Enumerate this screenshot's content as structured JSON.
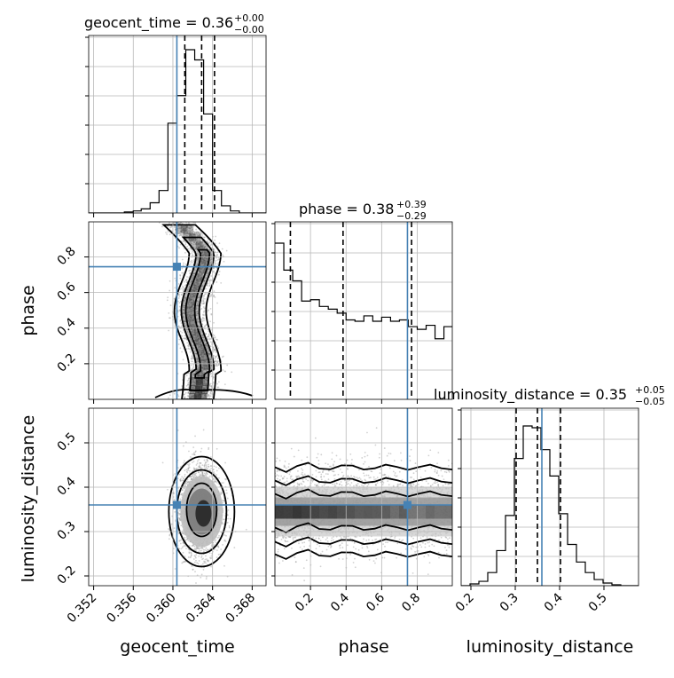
{
  "chart_data": {
    "type": "corner",
    "parameters": [
      "geocent_time",
      "phase",
      "luminosity_distance"
    ],
    "titles": [
      {
        "param": "geocent_time",
        "label": "geocent_time = 0.36",
        "up": "+0.00",
        "down": "−0.00"
      },
      {
        "param": "phase",
        "label": "phase = 0.38",
        "up": "+0.39",
        "down": "−0.29"
      },
      {
        "param": "luminosity_distance",
        "label": "luminosity_distance = 0.35",
        "up": "+0.05",
        "down": "−0.05"
      }
    ],
    "axis_labels": {
      "x": [
        "geocent_time",
        "phase",
        "luminosity_distance"
      ],
      "y": [
        "phase",
        "luminosity_distance"
      ]
    },
    "ranges": {
      "geocent_time": [
        0.3515,
        0.3694
      ],
      "phase": [
        0.0,
        0.997
      ],
      "luminosity_distance": [
        0.178,
        0.578
      ]
    },
    "ticks": {
      "geocent_time": [
        0.352,
        0.356,
        0.36,
        0.364,
        0.368
      ],
      "geocent_time_labels": [
        "0.352",
        "0.356",
        "0.360",
        "0.364",
        "0.368"
      ],
      "phase": [
        0.2,
        0.4,
        0.6,
        0.8
      ],
      "phase_labels": [
        "0.2",
        "0.4",
        "0.6",
        "0.8"
      ],
      "luminosity_distance": [
        0.2,
        0.3,
        0.4,
        0.5
      ],
      "luminosity_distance_labels": [
        "0.2",
        "0.3",
        "0.4",
        "0.5"
      ]
    },
    "truth": {
      "geocent_time": 0.3604,
      "phase": 0.745,
      "luminosity_distance": 0.36
    },
    "quantiles": {
      "geocent_time": [
        0.3612,
        0.3629,
        0.3642
      ],
      "phase": [
        0.087,
        0.383,
        0.768
      ],
      "luminosity_distance": [
        0.302,
        0.35,
        0.402
      ]
    },
    "hist_geocent_time": {
      "edges": [
        0.3515,
        0.3524,
        0.3533,
        0.3542,
        0.3551,
        0.356,
        0.3568,
        0.3577,
        0.3586,
        0.3595,
        0.3604,
        0.3613,
        0.3622,
        0.3631,
        0.364,
        0.3649,
        0.3658,
        0.3667,
        0.3676,
        0.3685,
        0.3694
      ],
      "counts": [
        0,
        0,
        0,
        0,
        1,
        2,
        4,
        10,
        22,
        88,
        115,
        160,
        150,
        97,
        22,
        7,
        2,
        0,
        0,
        0
      ]
    },
    "hist_phase": {
      "edges": [
        0.0,
        0.05,
        0.1,
        0.15,
        0.2,
        0.25,
        0.3,
        0.35,
        0.4,
        0.45,
        0.5,
        0.55,
        0.6,
        0.65,
        0.7,
        0.75,
        0.8,
        0.85,
        0.9,
        0.95,
        0.997
      ],
      "counts": [
        116,
        96,
        88,
        73,
        74,
        69,
        67,
        64,
        59,
        58,
        62,
        58,
        61,
        58,
        59,
        54,
        52,
        55,
        45,
        54
      ]
    },
    "hist_luminosity_distance": {
      "edges": [
        0.178,
        0.198,
        0.218,
        0.238,
        0.258,
        0.278,
        0.298,
        0.318,
        0.338,
        0.358,
        0.378,
        0.398,
        0.418,
        0.438,
        0.458,
        0.478,
        0.498,
        0.518,
        0.538,
        0.558,
        0.578
      ],
      "counts": [
        0,
        2,
        5,
        15,
        40,
        80,
        145,
        182,
        180,
        155,
        125,
        82,
        47,
        27,
        15,
        7,
        3,
        1,
        0,
        0
      ]
    }
  }
}
